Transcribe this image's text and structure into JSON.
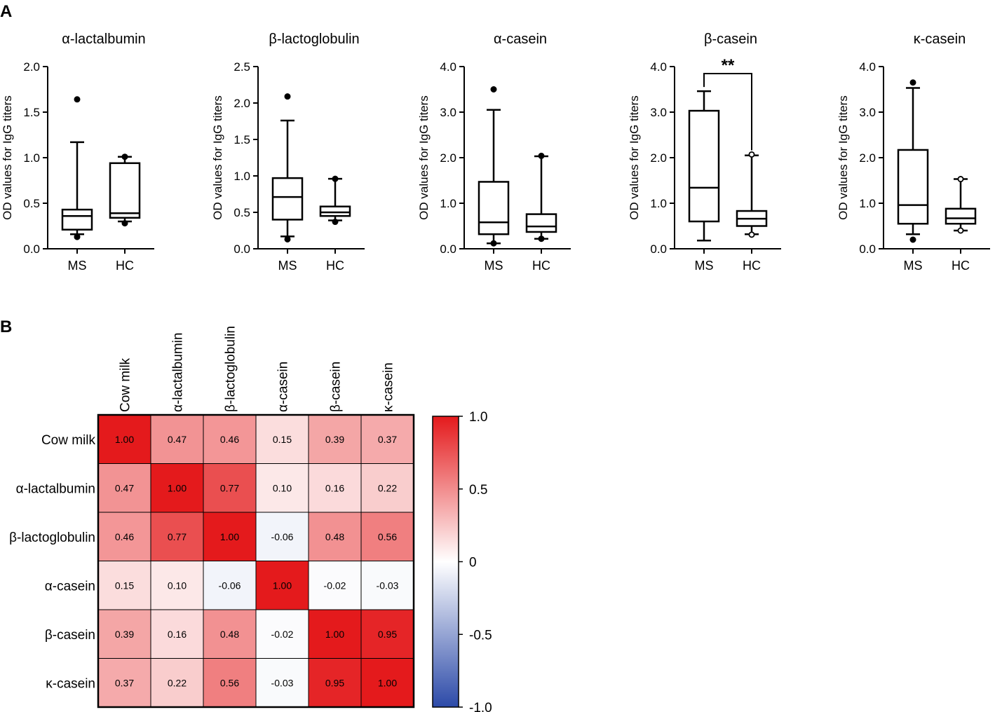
{
  "panels": {
    "A": "A",
    "B": "B"
  },
  "chart_data": [
    {
      "type": "box",
      "title": "α-lactalbumin",
      "ylabel": "OD values for IgG titers",
      "categories": [
        "MS",
        "HC"
      ],
      "ylim": [
        0,
        2.0
      ],
      "yticks": [
        "0.0",
        "0.5",
        "1.0",
        "1.5",
        "2.0"
      ],
      "ytick_values": [
        0,
        0.5,
        1.0,
        1.5,
        2.0
      ],
      "boxes": [
        {
          "name": "MS",
          "whisker_low": 0.16,
          "q1": 0.21,
          "median": 0.36,
          "q3": 0.43,
          "whisker_high": 1.17,
          "outliers": [
            1.64,
            0.13
          ],
          "outlier_style": "filled"
        },
        {
          "name": "HC",
          "whisker_low": 0.3,
          "q1": 0.34,
          "median": 0.39,
          "q3": 0.94,
          "whisker_high": 1.01,
          "outliers": [
            1.01,
            0.28
          ],
          "outlier_style": "filled"
        }
      ]
    },
    {
      "type": "box",
      "title": "β-lactoglobulin",
      "ylabel": "OD values for IgG titers",
      "categories": [
        "MS",
        "HC"
      ],
      "ylim": [
        0,
        2.5
      ],
      "yticks": [
        "0.0",
        "0.5",
        "1.0",
        "1.5",
        "2.0",
        "2.5"
      ],
      "ytick_values": [
        0,
        0.5,
        1.0,
        1.5,
        2.0,
        2.5
      ],
      "boxes": [
        {
          "name": "MS",
          "whisker_low": 0.17,
          "q1": 0.4,
          "median": 0.71,
          "q3": 0.97,
          "whisker_high": 1.76,
          "outliers": [
            2.09,
            0.13
          ],
          "outlier_style": "filled"
        },
        {
          "name": "HC",
          "whisker_low": 0.39,
          "q1": 0.45,
          "median": 0.5,
          "q3": 0.58,
          "whisker_high": 0.96,
          "outliers": [
            0.96,
            0.37
          ],
          "outlier_style": "filled"
        }
      ]
    },
    {
      "type": "box",
      "title": "α-casein",
      "ylabel": "OD values for IgG titers",
      "categories": [
        "MS",
        "HC"
      ],
      "ylim": [
        0,
        4.0
      ],
      "yticks": [
        "0.0",
        "1.0",
        "2.0",
        "3.0",
        "4.0"
      ],
      "ytick_values": [
        0,
        1.0,
        2.0,
        3.0,
        4.0
      ],
      "boxes": [
        {
          "name": "MS",
          "whisker_low": 0.12,
          "q1": 0.32,
          "median": 0.58,
          "q3": 1.47,
          "whisker_high": 3.05,
          "outliers": [
            3.5,
            0.12
          ],
          "outlier_style": "filled"
        },
        {
          "name": "HC",
          "whisker_low": 0.22,
          "q1": 0.37,
          "median": 0.49,
          "q3": 0.76,
          "whisker_high": 2.03,
          "outliers": [
            2.04,
            0.22
          ],
          "outlier_style": "filled"
        }
      ]
    },
    {
      "type": "box",
      "title": "β-casein",
      "ylabel": "OD values for IgG titers",
      "categories": [
        "MS",
        "HC"
      ],
      "ylim": [
        0,
        4.0
      ],
      "yticks": [
        "0.0",
        "1.0",
        "2.0",
        "3.0",
        "4.0"
      ],
      "ytick_values": [
        0,
        1.0,
        2.0,
        3.0,
        4.0
      ],
      "significance": "**",
      "boxes": [
        {
          "name": "MS",
          "whisker_low": 0.18,
          "q1": 0.6,
          "median": 1.34,
          "q3": 3.03,
          "whisker_high": 3.46,
          "outliers": [],
          "outlier_style": "filled"
        },
        {
          "name": "HC",
          "whisker_low": 0.32,
          "q1": 0.5,
          "median": 0.66,
          "q3": 0.83,
          "whisker_high": 2.05,
          "outliers": [
            2.07,
            0.31
          ],
          "outlier_style": "open"
        }
      ]
    },
    {
      "type": "box",
      "title": "κ-casein",
      "ylabel": "OD values for IgG titers",
      "categories": [
        "MS",
        "HC"
      ],
      "ylim": [
        0,
        4.0
      ],
      "yticks": [
        "0.0",
        "1.0",
        "2.0",
        "3.0",
        "4.0"
      ],
      "ytick_values": [
        0,
        1.0,
        2.0,
        3.0,
        4.0
      ],
      "boxes": [
        {
          "name": "MS",
          "whisker_low": 0.32,
          "q1": 0.55,
          "median": 0.96,
          "q3": 2.17,
          "whisker_high": 3.53,
          "outliers": [
            3.65,
            0.2
          ],
          "outlier_style": "filled"
        },
        {
          "name": "HC",
          "whisker_low": 0.4,
          "q1": 0.55,
          "median": 0.67,
          "q3": 0.88,
          "whisker_high": 1.53,
          "outliers": [
            1.53,
            0.4
          ],
          "outlier_style": "open"
        }
      ]
    },
    {
      "type": "heatmap",
      "row_labels": [
        "Cow milk",
        "α-lactalbumin",
        "β-lactoglobulin",
        "α-casein",
        "β-casein",
        "κ-casein"
      ],
      "col_labels": [
        "Cow milk",
        "α-lactalbumin",
        "β-lactoglobulin",
        "α-casein",
        "β-casein",
        "κ-casein"
      ],
      "values": [
        [
          1.0,
          0.47,
          0.46,
          0.15,
          0.39,
          0.37
        ],
        [
          0.47,
          1.0,
          0.77,
          0.1,
          0.16,
          0.22
        ],
        [
          0.46,
          0.77,
          1.0,
          -0.06,
          0.48,
          0.56
        ],
        [
          0.15,
          0.1,
          -0.06,
          1.0,
          -0.02,
          -0.03
        ],
        [
          0.39,
          0.16,
          0.48,
          -0.02,
          1.0,
          0.95
        ],
        [
          0.37,
          0.22,
          0.56,
          -0.03,
          0.95,
          1.0
        ]
      ],
      "labels": [
        [
          "1.00",
          "0.47",
          "0.46",
          "0.15",
          "0.39",
          "0.37"
        ],
        [
          "0.47",
          "1.00",
          "0.77",
          "0.10",
          "0.16",
          "0.22"
        ],
        [
          "0.46",
          "0.77",
          "1.00",
          "-0.06",
          "0.48",
          "0.56"
        ],
        [
          "0.15",
          "0.10",
          "-0.06",
          "1.00",
          "-0.02",
          "-0.03"
        ],
        [
          "0.39",
          "0.16",
          "0.48",
          "-0.02",
          "1.00",
          "0.95"
        ],
        [
          "0.37",
          "0.22",
          "0.56",
          "-0.03",
          "0.95",
          "1.00"
        ]
      ],
      "colorbar": {
        "range": [
          -1.0,
          1.0
        ],
        "ticks": [
          1.0,
          0.5,
          0,
          -0.5,
          -1.0
        ],
        "tick_labels": [
          "1.0",
          "0.5",
          "0",
          "-0.5",
          "-1.0"
        ],
        "color_high": "#e41a1c",
        "color_mid": "#ffffff",
        "color_low": "#2c4aa8"
      }
    }
  ]
}
